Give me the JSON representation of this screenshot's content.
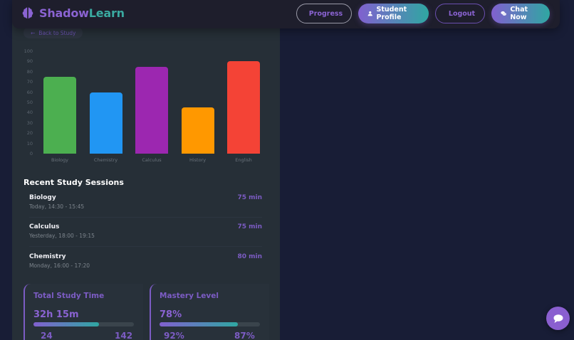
{
  "header": {
    "logo_part1": "Shadow",
    "logo_part2": "Learn",
    "logo_icon": "brain-icon",
    "nav": {
      "progress": "Progress",
      "student_profile": "Student Profile",
      "logout": "Logout",
      "chat_now": "Chat Now"
    }
  },
  "back_link": "Back to Study",
  "chart_data": {
    "type": "bar",
    "title": "",
    "xlabel": "",
    "ylabel": "",
    "categories": [
      "Biology",
      "Chemistry",
      "Calculus",
      "History",
      "English"
    ],
    "values": [
      75,
      60,
      85,
      45,
      90
    ],
    "colors": [
      "#4caf50",
      "#2196f3",
      "#9c27b0",
      "#ff9800",
      "#f44336"
    ],
    "ylim": [
      0,
      100
    ],
    "yticks": [
      0,
      10,
      20,
      30,
      40,
      50,
      60,
      70,
      80,
      90,
      100
    ],
    "grid": false,
    "legend": "none"
  },
  "sessions": {
    "title": "Recent Study Sessions",
    "items": [
      {
        "subject": "Biology",
        "time": "Today, 14:30 - 15:45",
        "duration": "75 min"
      },
      {
        "subject": "Calculus",
        "time": "Yesterday, 18:00 - 19:15",
        "duration": "75 min"
      },
      {
        "subject": "Chemistry",
        "time": "Monday, 16:00 - 17:20",
        "duration": "80 min"
      }
    ]
  },
  "stats": [
    {
      "title": "Total Study Time",
      "value": "32h 15m",
      "progress": 65,
      "sub_left": "24",
      "sub_right": "142"
    },
    {
      "title": "Mastery Level",
      "value": "78%",
      "progress": 78,
      "sub_left": "92%",
      "sub_right": "87%"
    }
  ],
  "colors": {
    "accent_purple": "#8a63d2",
    "accent_teal": "#2fa7a2",
    "background": "#181d36",
    "panel": "#262f37"
  }
}
